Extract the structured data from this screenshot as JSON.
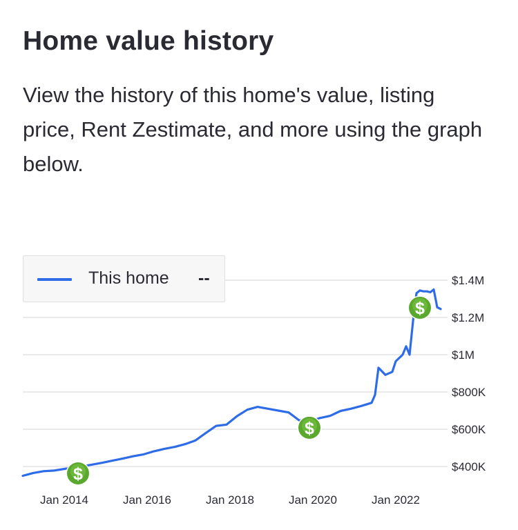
{
  "header": {
    "title": "Home value history",
    "description": "View the history of this home's value, listing price, Rent Zestimate, and more using the graph below."
  },
  "legend": {
    "label": "This home",
    "value": "--"
  },
  "colors": {
    "line": "#2e6be6",
    "marker": "#5aa82d",
    "grid": "#e3e3e3"
  },
  "chart_data": {
    "type": "line",
    "title": "",
    "xlabel": "",
    "ylabel": "",
    "x_tick_labels": [
      "Jan 2014",
      "Jan 2016",
      "Jan 2018",
      "Jan 2020",
      "Jan 2022"
    ],
    "y_tick_labels": [
      "$400K",
      "$600K",
      "$800K",
      "$1M",
      "$1.2M",
      "$1.4M"
    ],
    "y_ticks": [
      400000,
      600000,
      800000,
      1000000,
      1200000,
      1400000
    ],
    "ylim": [
      330000,
      1420000
    ],
    "xlim": [
      "2013-01",
      "2023-04"
    ],
    "grid": true,
    "legend_position": "top-left",
    "series": [
      {
        "name": "This home",
        "x": [
          "2013-01",
          "2013-04",
          "2013-07",
          "2013-10",
          "2014-01",
          "2014-03",
          "2014-06",
          "2014-09",
          "2014-12",
          "2015-03",
          "2015-06",
          "2015-09",
          "2015-12",
          "2016-03",
          "2016-06",
          "2016-09",
          "2016-12",
          "2017-03",
          "2017-06",
          "2017-09",
          "2017-12",
          "2018-03",
          "2018-06",
          "2018-09",
          "2018-12",
          "2019-03",
          "2019-06",
          "2019-09",
          "2019-12",
          "2020-03",
          "2020-06",
          "2020-09",
          "2020-12",
          "2021-03",
          "2021-06",
          "2021-07",
          "2021-08",
          "2021-10",
          "2021-12",
          "2022-01",
          "2022-03",
          "2022-04",
          "2022-05",
          "2022-06",
          "2022-07",
          "2022-08",
          "2022-09",
          "2022-10",
          "2022-11",
          "2022-12",
          "2023-01",
          "2023-02"
        ],
        "values": [
          350000,
          365000,
          375000,
          378000,
          387000,
          393000,
          400000,
          410000,
          420000,
          432000,
          443000,
          455000,
          465000,
          482000,
          495000,
          505000,
          520000,
          540000,
          580000,
          618000,
          625000,
          670000,
          705000,
          720000,
          710000,
          700000,
          690000,
          648000,
          640000,
          660000,
          672000,
          698000,
          710000,
          725000,
          742000,
          785000,
          930000,
          892000,
          908000,
          965000,
          1000000,
          1045000,
          1000000,
          1180000,
          1330000,
          1345000,
          1340000,
          1340000,
          1335000,
          1350000,
          1255000,
          1245000
        ]
      }
    ],
    "events": [
      {
        "label": "Sold",
        "x": "2014-05",
        "y": 363000
      },
      {
        "label": "Sold",
        "x": "2019-12",
        "y": 608000
      },
      {
        "label": "Sold",
        "x": "2022-08",
        "y": 1252000
      }
    ]
  }
}
